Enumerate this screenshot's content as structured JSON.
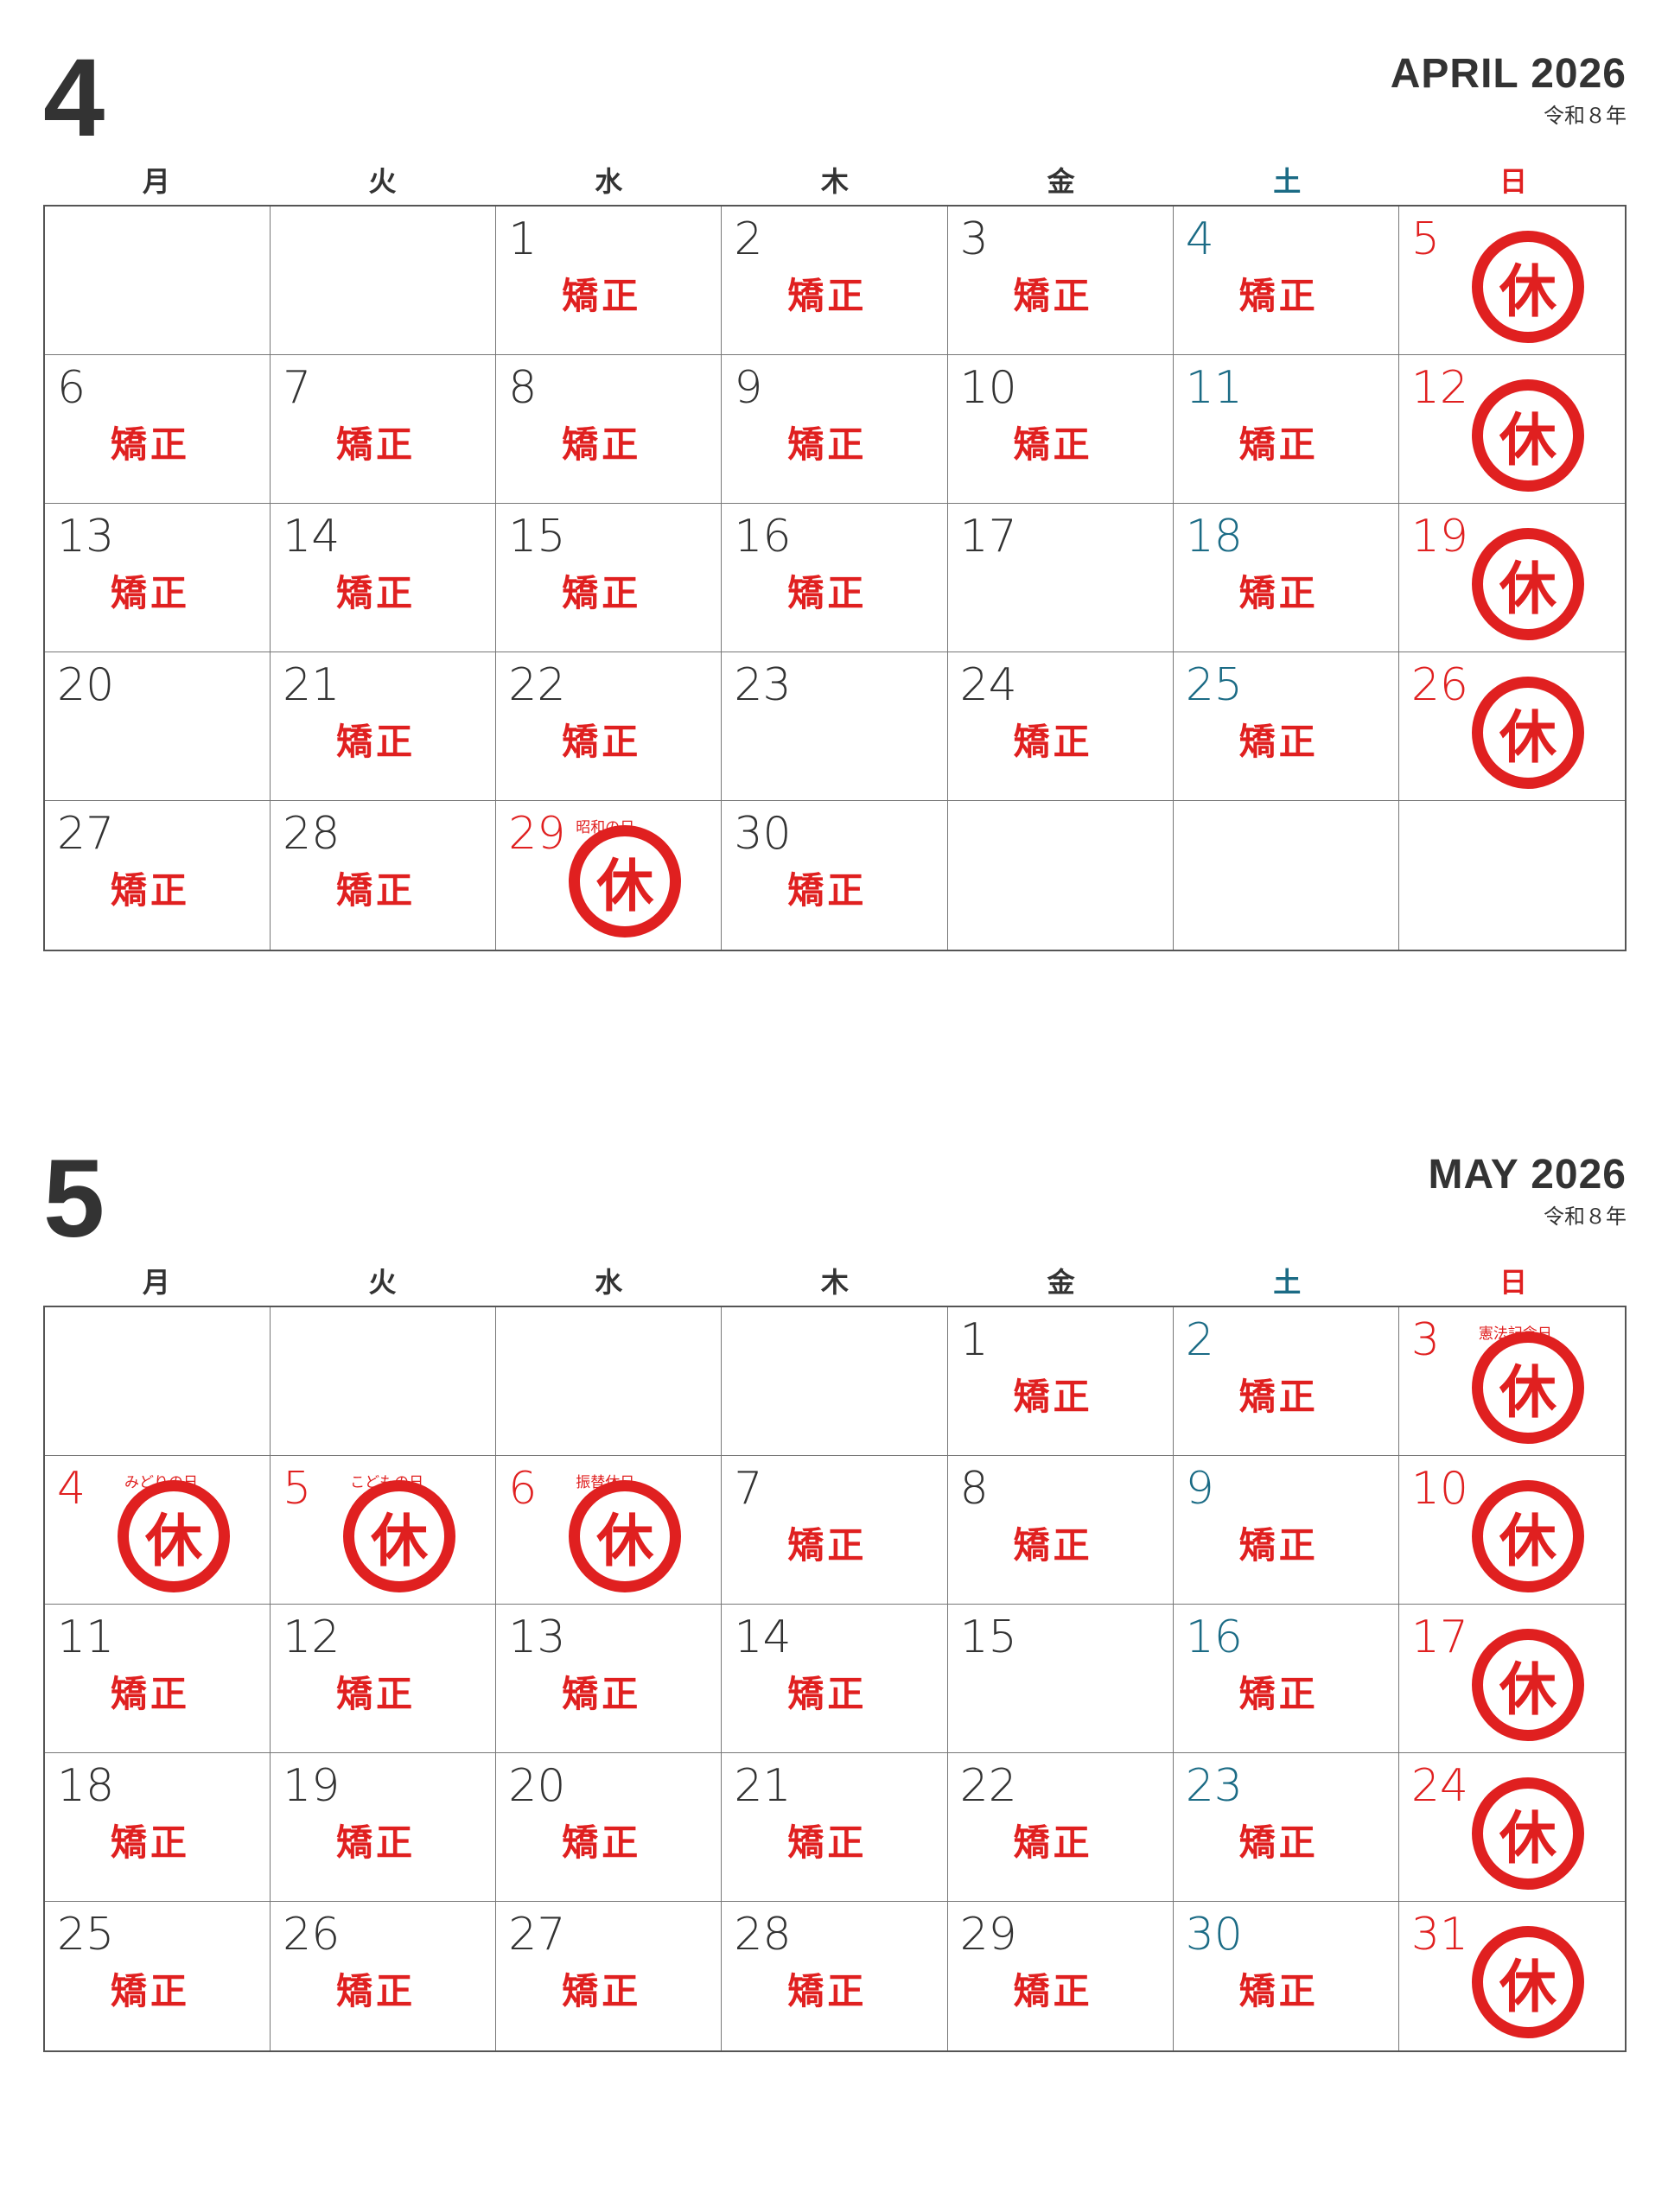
{
  "labels": {
    "work": "矯正",
    "off": "休"
  },
  "weekdays": [
    "月",
    "火",
    "水",
    "木",
    "金",
    "土",
    "日"
  ],
  "colors": {
    "red": "#e02020",
    "saturday": "#1b6b85",
    "text": "#333333"
  },
  "months": [
    {
      "number": "4",
      "title": "APRIL 2026",
      "era": "令和８年",
      "weeks": [
        [
          {},
          {},
          {
            "d": "1",
            "t": "work"
          },
          {
            "d": "2",
            "t": "work"
          },
          {
            "d": "3",
            "t": "work"
          },
          {
            "d": "4",
            "t": "work"
          },
          {
            "d": "5",
            "t": "off"
          }
        ],
        [
          {
            "d": "6",
            "t": "work"
          },
          {
            "d": "7",
            "t": "work"
          },
          {
            "d": "8",
            "t": "work"
          },
          {
            "d": "9",
            "t": "work"
          },
          {
            "d": "10",
            "t": "work"
          },
          {
            "d": "11",
            "t": "work"
          },
          {
            "d": "12",
            "t": "off"
          }
        ],
        [
          {
            "d": "13",
            "t": "work"
          },
          {
            "d": "14",
            "t": "work"
          },
          {
            "d": "15",
            "t": "work"
          },
          {
            "d": "16",
            "t": "work"
          },
          {
            "d": "17"
          },
          {
            "d": "18",
            "t": "work"
          },
          {
            "d": "19",
            "t": "off"
          }
        ],
        [
          {
            "d": "20"
          },
          {
            "d": "21",
            "t": "work"
          },
          {
            "d": "22",
            "t": "work"
          },
          {
            "d": "23"
          },
          {
            "d": "24",
            "t": "work"
          },
          {
            "d": "25",
            "t": "work"
          },
          {
            "d": "26",
            "t": "off"
          }
        ],
        [
          {
            "d": "27",
            "t": "work"
          },
          {
            "d": "28",
            "t": "work"
          },
          {
            "d": "29",
            "t": "off",
            "h": "昭和の日"
          },
          {
            "d": "30",
            "t": "work"
          },
          {},
          {},
          {}
        ]
      ]
    },
    {
      "number": "5",
      "title": "MAY 2026",
      "era": "令和８年",
      "weeks": [
        [
          {},
          {},
          {},
          {},
          {
            "d": "1",
            "t": "work"
          },
          {
            "d": "2",
            "t": "work"
          },
          {
            "d": "3",
            "t": "off",
            "h": "憲法記念日"
          }
        ],
        [
          {
            "d": "4",
            "t": "off",
            "h": "みどりの日"
          },
          {
            "d": "5",
            "t": "off",
            "h": "こどもの日"
          },
          {
            "d": "6",
            "t": "off",
            "h": "振替休日"
          },
          {
            "d": "7",
            "t": "work"
          },
          {
            "d": "8",
            "t": "work"
          },
          {
            "d": "9",
            "t": "work"
          },
          {
            "d": "10",
            "t": "off"
          }
        ],
        [
          {
            "d": "11",
            "t": "work"
          },
          {
            "d": "12",
            "t": "work"
          },
          {
            "d": "13",
            "t": "work"
          },
          {
            "d": "14",
            "t": "work"
          },
          {
            "d": "15"
          },
          {
            "d": "16",
            "t": "work"
          },
          {
            "d": "17",
            "t": "off"
          }
        ],
        [
          {
            "d": "18",
            "t": "work"
          },
          {
            "d": "19",
            "t": "work"
          },
          {
            "d": "20",
            "t": "work"
          },
          {
            "d": "21",
            "t": "work"
          },
          {
            "d": "22",
            "t": "work"
          },
          {
            "d": "23",
            "t": "work"
          },
          {
            "d": "24",
            "t": "off"
          }
        ],
        [
          {
            "d": "25",
            "t": "work"
          },
          {
            "d": "26",
            "t": "work"
          },
          {
            "d": "27",
            "t": "work"
          },
          {
            "d": "28",
            "t": "work"
          },
          {
            "d": "29",
            "t": "work"
          },
          {
            "d": "30",
            "t": "work"
          },
          {
            "d": "31",
            "t": "off"
          }
        ]
      ]
    }
  ]
}
